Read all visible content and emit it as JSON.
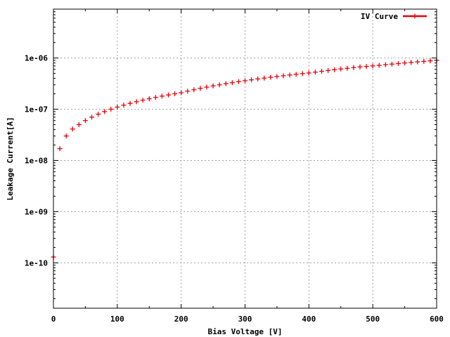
{
  "chart_data": {
    "type": "scatter",
    "title": "",
    "xlabel": "Bias Voltage [V]",
    "ylabel": "Leakage Current[A]",
    "xlim": [
      0,
      600
    ],
    "ylim": [
      1.3e-11,
      9e-06
    ],
    "yscale": "log",
    "grid": true,
    "legend_position": "top-right",
    "x_ticks": [
      "0",
      "100",
      "200",
      "300",
      "400",
      "500",
      "600"
    ],
    "x_tick_values": [
      0,
      100,
      200,
      300,
      400,
      500,
      600
    ],
    "y_ticks": [
      "1e-10",
      "1e-09",
      "1e-08",
      "1e-07",
      "1e-06"
    ],
    "y_tick_values": [
      1e-10,
      1e-09,
      1e-08,
      1e-07,
      1e-06
    ],
    "series": [
      {
        "name": "IV Curve",
        "color": "#e8000b",
        "marker": "plus",
        "x": [
          0,
          10,
          20,
          30,
          40,
          50,
          60,
          70,
          80,
          90,
          100,
          110,
          120,
          130,
          140,
          150,
          160,
          170,
          180,
          190,
          200,
          210,
          220,
          230,
          240,
          250,
          260,
          270,
          280,
          290,
          300,
          310,
          320,
          330,
          340,
          350,
          360,
          370,
          380,
          390,
          400,
          410,
          420,
          430,
          440,
          450,
          460,
          470,
          480,
          490,
          500,
          510,
          520,
          530,
          540,
          550,
          560,
          570,
          580,
          590,
          600
        ],
        "y": [
          1.3e-10,
          1.7e-08,
          3e-08,
          4.1e-08,
          5e-08,
          6e-08,
          7e-08,
          8e-08,
          9e-08,
          1e-07,
          1.1e-07,
          1.2e-07,
          1.3e-07,
          1.4e-07,
          1.5e-07,
          1.6e-07,
          1.7e-07,
          1.8e-07,
          1.9e-07,
          2e-07,
          2.1e-07,
          2.25e-07,
          2.4e-07,
          2.55e-07,
          2.7e-07,
          2.85e-07,
          3e-07,
          3.15e-07,
          3.3e-07,
          3.45e-07,
          3.6e-07,
          3.75e-07,
          3.9e-07,
          4.05e-07,
          4.2e-07,
          4.35e-07,
          4.5e-07,
          4.65e-07,
          4.8e-07,
          4.95e-07,
          5.1e-07,
          5.3e-07,
          5.5e-07,
          5.7e-07,
          5.9e-07,
          6.1e-07,
          6.3e-07,
          6.5e-07,
          6.7e-07,
          6.85e-07,
          7e-07,
          7.2e-07,
          7.4e-07,
          7.6e-07,
          7.8e-07,
          8e-07,
          8.2e-07,
          8.4e-07,
          8.6e-07,
          8.8e-07,
          9e-07
        ]
      }
    ]
  }
}
